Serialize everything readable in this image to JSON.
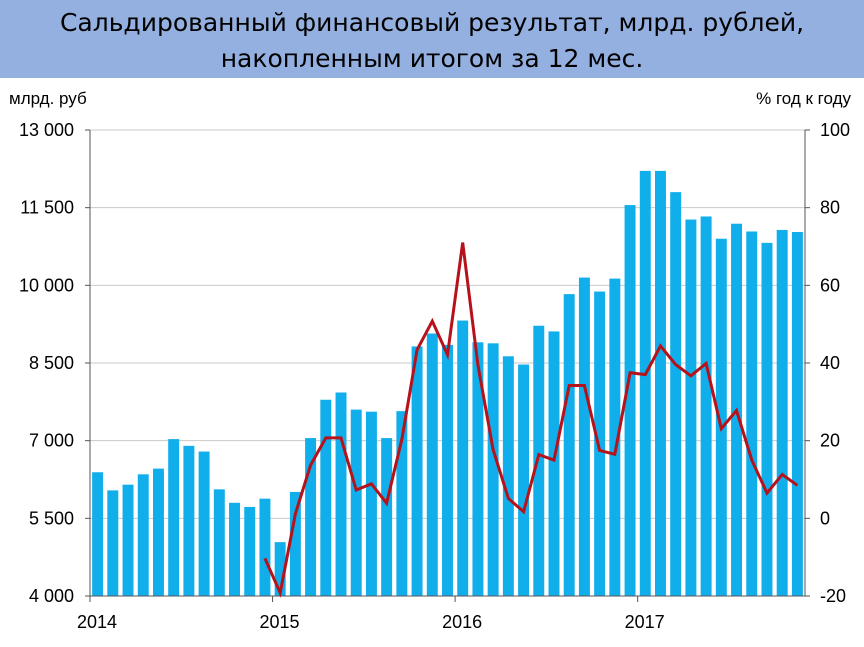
{
  "title": {
    "line1": "Сальдированный финансовый результат, млрд. рублей,",
    "line2": "накопленным итогом за 12 мес."
  },
  "colors": {
    "title_bg": "#94b0e0",
    "bars": "#10aeeb",
    "line": "#b5121b",
    "grid": "#c9c9c9"
  },
  "chart_data": {
    "type": "bar",
    "left_axis_label": "млрд. руб",
    "right_axis_label": "% год к году",
    "left_ylim": [
      4000,
      13000
    ],
    "right_ylim": [
      -20,
      100
    ],
    "left_ticks": [
      "13 000",
      "11 500",
      "10 000",
      "8 500",
      "7 000",
      "5 500",
      "4 000"
    ],
    "right_ticks": [
      "100",
      "80",
      "60",
      "40",
      "20",
      "0",
      "-20"
    ],
    "x_labels": [
      "2014",
      "2015",
      "2016",
      "2017"
    ],
    "grid": true,
    "series": [
      {
        "name": "",
        "kind": "bar",
        "axis": "left",
        "values": [
          6390,
          6040,
          6150,
          6350,
          6460,
          7030,
          6900,
          6790,
          6060,
          5800,
          5720,
          5880,
          5040,
          6010,
          7050,
          7790,
          7930,
          7600,
          7560,
          7050,
          7570,
          8820,
          9070,
          8850,
          9320,
          8900,
          8880,
          8630,
          8470,
          9220,
          9110,
          9830,
          10150,
          9880,
          10130,
          11550,
          12210,
          12210,
          11800,
          11270,
          11330,
          10900,
          11190,
          11040,
          10820,
          11070,
          11030
        ]
      },
      {
        "name": "",
        "kind": "line",
        "axis": "right",
        "values": [
          null,
          null,
          null,
          null,
          null,
          null,
          null,
          null,
          null,
          null,
          null,
          -10.3,
          -19.2,
          1.2,
          13.7,
          20.7,
          20.7,
          7.3,
          8.9,
          3.9,
          20.4,
          43.4,
          50.8,
          42.1,
          71.0,
          39.5,
          17.7,
          5.1,
          1.7,
          16.4,
          15.0,
          34.2,
          34.2,
          17.5,
          16.5,
          37.5,
          37.0,
          44.4,
          39.6,
          36.7,
          39.9,
          23.1,
          27.8,
          15.0,
          6.5,
          11.3,
          8.5
        ]
      }
    ]
  }
}
